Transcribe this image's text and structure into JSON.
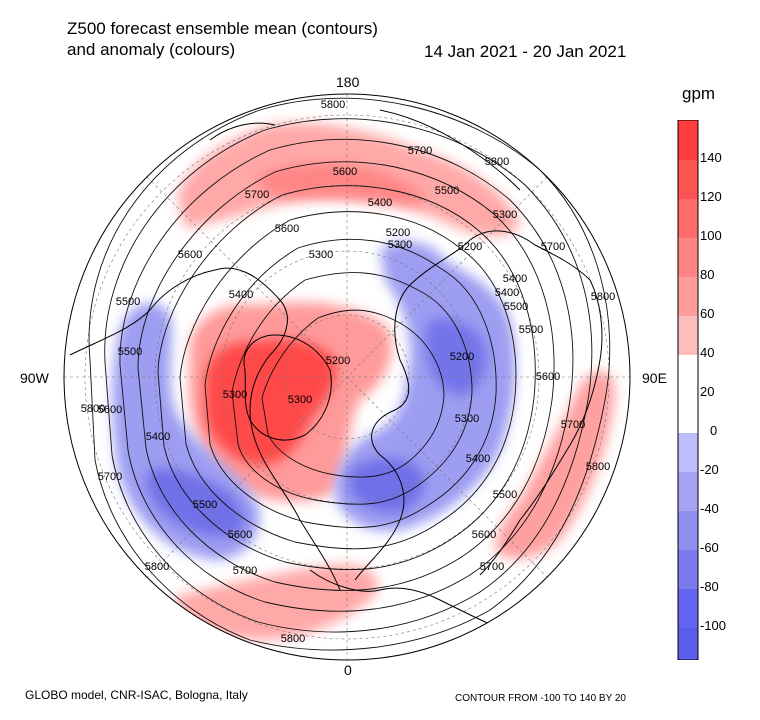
{
  "header": {
    "title_line1": "Z500 forecast ensemble mean (contours)",
    "title_line2": "and anomaly (colours)",
    "period": "14 Jan 2021 - 20 Jan 2021"
  },
  "map": {
    "projection": "north-polar-stereographic",
    "lon_labels": {
      "top": "180",
      "bottom": "0",
      "left": "90W",
      "right": "90E"
    },
    "contour_labels": [
      "5800",
      "5700",
      "5600",
      "5500",
      "5400",
      "5300",
      "5200",
      "5800",
      "5700",
      "5600",
      "5500",
      "5400",
      "5300",
      "5200",
      "5800",
      "5700",
      "5600",
      "5500",
      "5400",
      "5300",
      "5200",
      "5300",
      "5800",
      "5700",
      "5600",
      "5500",
      "5400",
      "5300",
      "5800",
      "5700",
      "5600",
      "5500",
      "5400",
      "5800",
      "5700",
      "5600",
      "5500",
      "5300",
      "5200",
      "5400",
      "5500",
      "5600",
      "5700",
      "5800"
    ]
  },
  "colorbar": {
    "units": "gpm",
    "ticks": [
      "140",
      "120",
      "100",
      "80",
      "60",
      "40",
      "20",
      "0",
      "-20",
      "-40",
      "-60",
      "-80",
      "-100"
    ],
    "colors": {
      "pos_strong": "#ff3d3d",
      "pos_mid": "#ff8f8f",
      "pos_light": "#ffbcbc",
      "neg_light": "#bdbdf7",
      "neg_mid": "#8f8fef",
      "neg_strong": "#6464ee",
      "neutral": "#ffffff"
    }
  },
  "footer": {
    "left": "GLOBO model, CNR-ISAC, Bologna, Italy",
    "right": "CONTOUR FROM -100 TO 140 BY 20"
  }
}
